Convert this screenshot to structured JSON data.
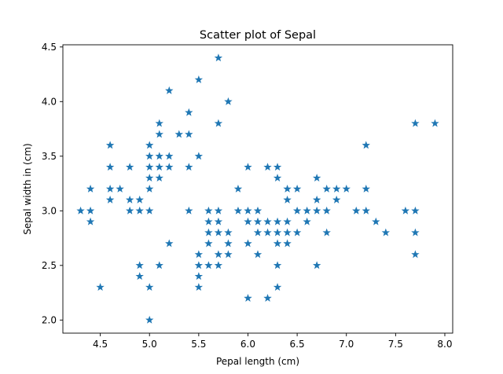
{
  "chart_data": {
    "type": "scatter",
    "title": "Scatter plot of Sepal",
    "xlabel": "Pepal length (cm)",
    "ylabel": "Sepal width in (cm)",
    "xlim": [
      4.12,
      8.08
    ],
    "ylim": [
      1.88,
      4.52
    ],
    "x_ticks": [
      4.5,
      5.0,
      5.5,
      6.0,
      6.5,
      7.0,
      7.5,
      8.0
    ],
    "x_tick_labels": [
      "4.5",
      "5.0",
      "5.5",
      "6.0",
      "6.5",
      "7.0",
      "7.5",
      "8.0"
    ],
    "y_ticks": [
      2.0,
      2.5,
      3.0,
      3.5,
      4.0,
      4.5
    ],
    "y_tick_labels": [
      "2.0",
      "2.5",
      "3.0",
      "3.5",
      "4.0",
      "4.5"
    ],
    "grid": false,
    "marker": "star",
    "marker_color": "#1f77b4",
    "points": [
      [
        4.3,
        3.0
      ],
      [
        4.4,
        2.9
      ],
      [
        4.4,
        3.0
      ],
      [
        4.4,
        3.2
      ],
      [
        4.5,
        2.3
      ],
      [
        4.6,
        3.1
      ],
      [
        4.6,
        3.2
      ],
      [
        4.6,
        3.4
      ],
      [
        4.6,
        3.6
      ],
      [
        4.7,
        3.2
      ],
      [
        4.8,
        3.0
      ],
      [
        4.8,
        3.1
      ],
      [
        4.8,
        3.4
      ],
      [
        4.9,
        2.4
      ],
      [
        4.9,
        2.5
      ],
      [
        4.9,
        3.0
      ],
      [
        4.9,
        3.1
      ],
      [
        5.0,
        2.0
      ],
      [
        5.0,
        2.3
      ],
      [
        5.0,
        3.0
      ],
      [
        5.0,
        3.2
      ],
      [
        5.0,
        3.3
      ],
      [
        5.0,
        3.4
      ],
      [
        5.0,
        3.5
      ],
      [
        5.0,
        3.6
      ],
      [
        5.1,
        2.5
      ],
      [
        5.1,
        3.3
      ],
      [
        5.1,
        3.4
      ],
      [
        5.1,
        3.5
      ],
      [
        5.1,
        3.7
      ],
      [
        5.1,
        3.8
      ],
      [
        5.2,
        2.7
      ],
      [
        5.2,
        3.4
      ],
      [
        5.2,
        3.5
      ],
      [
        5.2,
        4.1
      ],
      [
        5.3,
        3.7
      ],
      [
        5.4,
        3.0
      ],
      [
        5.4,
        3.4
      ],
      [
        5.4,
        3.7
      ],
      [
        5.4,
        3.9
      ],
      [
        5.5,
        2.3
      ],
      [
        5.5,
        2.4
      ],
      [
        5.5,
        2.5
      ],
      [
        5.5,
        2.6
      ],
      [
        5.5,
        3.5
      ],
      [
        5.5,
        4.2
      ],
      [
        5.6,
        2.5
      ],
      [
        5.6,
        2.7
      ],
      [
        5.6,
        2.8
      ],
      [
        5.6,
        2.9
      ],
      [
        5.6,
        3.0
      ],
      [
        5.7,
        2.5
      ],
      [
        5.7,
        2.6
      ],
      [
        5.7,
        2.8
      ],
      [
        5.7,
        2.9
      ],
      [
        5.7,
        3.0
      ],
      [
        5.7,
        3.8
      ],
      [
        5.7,
        4.4
      ],
      [
        5.8,
        2.6
      ],
      [
        5.8,
        2.7
      ],
      [
        5.8,
        2.8
      ],
      [
        5.8,
        4.0
      ],
      [
        5.9,
        3.0
      ],
      [
        5.9,
        3.2
      ],
      [
        6.0,
        2.2
      ],
      [
        6.0,
        2.7
      ],
      [
        6.0,
        2.9
      ],
      [
        6.0,
        3.0
      ],
      [
        6.0,
        3.4
      ],
      [
        6.1,
        2.6
      ],
      [
        6.1,
        2.8
      ],
      [
        6.1,
        2.9
      ],
      [
        6.1,
        3.0
      ],
      [
        6.2,
        2.2
      ],
      [
        6.2,
        2.8
      ],
      [
        6.2,
        2.9
      ],
      [
        6.2,
        3.4
      ],
      [
        6.3,
        2.3
      ],
      [
        6.3,
        2.5
      ],
      [
        6.3,
        2.7
      ],
      [
        6.3,
        2.8
      ],
      [
        6.3,
        2.9
      ],
      [
        6.3,
        3.3
      ],
      [
        6.3,
        3.4
      ],
      [
        6.4,
        2.7
      ],
      [
        6.4,
        2.8
      ],
      [
        6.4,
        2.9
      ],
      [
        6.4,
        3.1
      ],
      [
        6.4,
        3.2
      ],
      [
        6.5,
        2.8
      ],
      [
        6.5,
        3.0
      ],
      [
        6.5,
        3.2
      ],
      [
        6.6,
        2.9
      ],
      [
        6.6,
        3.0
      ],
      [
        6.7,
        2.5
      ],
      [
        6.7,
        3.0
      ],
      [
        6.7,
        3.1
      ],
      [
        6.7,
        3.3
      ],
      [
        6.8,
        2.8
      ],
      [
        6.8,
        3.0
      ],
      [
        6.8,
        3.2
      ],
      [
        6.9,
        3.1
      ],
      [
        6.9,
        3.2
      ],
      [
        7.0,
        3.2
      ],
      [
        7.1,
        3.0
      ],
      [
        7.2,
        3.0
      ],
      [
        7.2,
        3.2
      ],
      [
        7.2,
        3.6
      ],
      [
        7.3,
        2.9
      ],
      [
        7.4,
        2.8
      ],
      [
        7.6,
        3.0
      ],
      [
        7.7,
        2.6
      ],
      [
        7.7,
        2.8
      ],
      [
        7.7,
        3.0
      ],
      [
        7.7,
        3.8
      ],
      [
        7.9,
        3.8
      ]
    ]
  }
}
